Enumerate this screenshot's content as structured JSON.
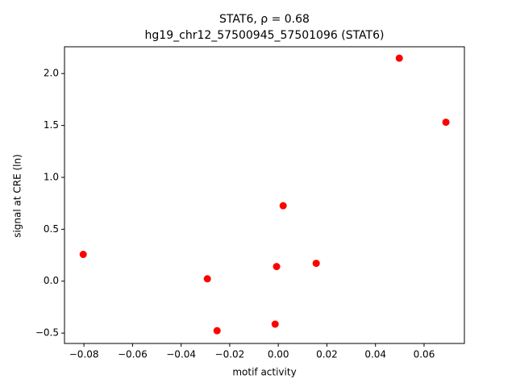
{
  "chart_data": {
    "type": "scatter",
    "title": "STAT6, ρ = 0.68",
    "subtitle": "hg19_chr12_57500945_57501096 (STAT6)",
    "x_label": "motif activity",
    "y_label": "signal at CRE (ln)",
    "color": "#ff0000",
    "x": [
      0.0498,
      0.069,
      0.002,
      -0.0803,
      -0.0292,
      -0.0007,
      0.0156,
      -0.0252,
      -0.0013
    ],
    "values": [
      2.148,
      1.531,
      0.727,
      0.258,
      0.023,
      0.141,
      0.172,
      -0.477,
      -0.414
    ],
    "xlim": [
      -0.088,
      0.0766
    ],
    "ylim": [
      -0.6,
      2.258
    ],
    "xticks": [
      {
        "value": -0.08,
        "label": "−0.08"
      },
      {
        "value": -0.06,
        "label": "−0.06"
      },
      {
        "value": -0.04,
        "label": "−0.04"
      },
      {
        "value": -0.02,
        "label": "−0.02"
      },
      {
        "value": 0,
        "label": "0.00"
      },
      0.02,
      0.04,
      0.06
    ],
    "yticks": [
      {
        "value": -0.5,
        "label": "−0.5"
      },
      {
        "value": 0,
        "label": "0.0"
      },
      0.5,
      {
        "value": 1,
        "label": "1.0"
      },
      1.5,
      {
        "value": 2,
        "label": "2.0"
      }
    ]
  }
}
